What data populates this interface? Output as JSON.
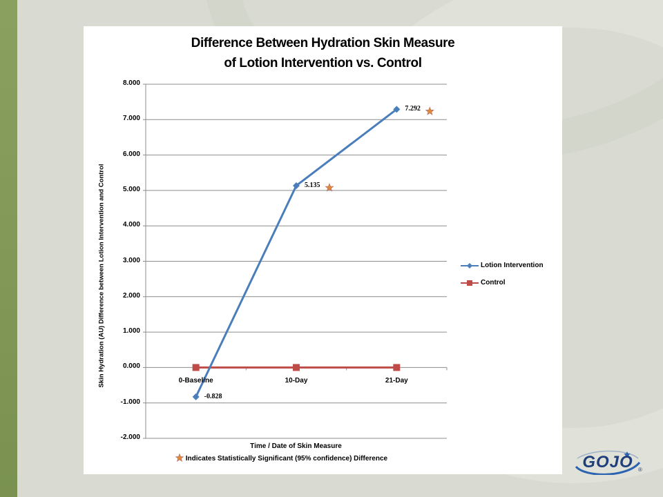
{
  "slide": {
    "logo_text": "GOJO",
    "logo_mark": "®",
    "accent_green": "#84995a",
    "background": "#d9dbd2"
  },
  "chart_data": {
    "type": "line",
    "title_lines": [
      "Difference Between Hydration Skin Measure",
      "of Lotion Intervention vs. Control"
    ],
    "categories": [
      "0-Baseline",
      "10-Day",
      "21-Day"
    ],
    "series": [
      {
        "name": "Lotion Intervention",
        "values": [
          -0.828,
          5.135,
          7.292
        ],
        "color": "#4a7ebb",
        "marker": "diamond"
      },
      {
        "name": "Control",
        "values": [
          0,
          0,
          0
        ],
        "color": "#be4b48",
        "marker": "square"
      }
    ],
    "data_labels": [
      "-0.828",
      "5.135",
      "7.292"
    ],
    "significant_markers": [
      false,
      true,
      true
    ],
    "xlabel": "Time / Date of Skin Measure",
    "ylabel": "Skin Hydration  (AU) Difference between Lotion Intervention and Control",
    "ylim": [
      -2,
      8
    ],
    "yticks": [
      "8.000",
      "7.000",
      "6.000",
      "5.000",
      "4.000",
      "3.000",
      "2.000",
      "1.000",
      "0.000",
      "-1.000",
      "-2.000"
    ],
    "grid": true,
    "legend_position": "right",
    "footnote": "Indicates Statistically  Significant (95% confidence) Difference"
  }
}
